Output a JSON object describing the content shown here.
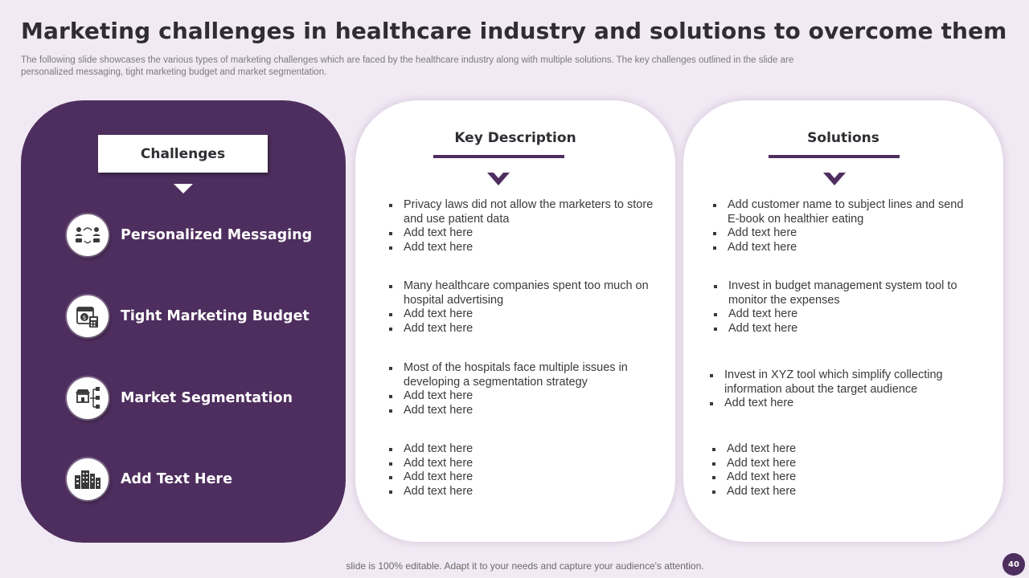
{
  "slide": {
    "title": "Marketing challenges in healthcare industry and solutions to overcome them",
    "subtitle": "The following slide showcases the various types of marketing challenges which are faced by the healthcare industry along with multiple solutions. The key challenges outlined in the slide are personalized messaging, tight marketing budget and market segmentation.",
    "footer_note": "slide is 100% editable. Adapt it to your needs and capture your audience's attention.",
    "page_number": "40"
  },
  "colors": {
    "accent": "#4e2e5e",
    "background": "#f1e9f3",
    "card": "#ffffff"
  },
  "challenges": {
    "heading": "Challenges",
    "items": [
      {
        "label": "Personalized Messaging",
        "icon": "people-chat-icon"
      },
      {
        "label": "Tight Marketing Budget",
        "icon": "budget-calendar-calculator-icon"
      },
      {
        "label": "Market Segmentation",
        "icon": "store-network-icon"
      },
      {
        "label": "Add Text Here",
        "icon": "buildings-icon"
      }
    ]
  },
  "key_description": {
    "heading": "Key Description",
    "groups": [
      [
        "Privacy laws did not allow the marketers to store and use patient data",
        "Add text here",
        "Add text here"
      ],
      [
        "Many healthcare companies spent too much on hospital advertising",
        "Add text here",
        "Add text here"
      ],
      [
        "Most of the hospitals face multiple issues in developing a segmentation strategy",
        "Add text here",
        "Add text here"
      ],
      [
        "Add text here",
        "Add text here",
        "Add text here",
        "Add text here"
      ]
    ]
  },
  "solutions": {
    "heading": "Solutions",
    "groups": [
      [
        "Add customer name to subject lines and send E-book on healthier eating",
        "Add text here",
        "Add text here"
      ],
      [
        "Invest in budget management system tool to monitor the expenses",
        "Add text here",
        "Add text here"
      ],
      [
        "Invest in XYZ tool which simplify collecting information about the target audience",
        "Add text here"
      ],
      [
        "Add text here",
        "Add text here",
        "Add text here",
        "Add text here"
      ]
    ]
  }
}
